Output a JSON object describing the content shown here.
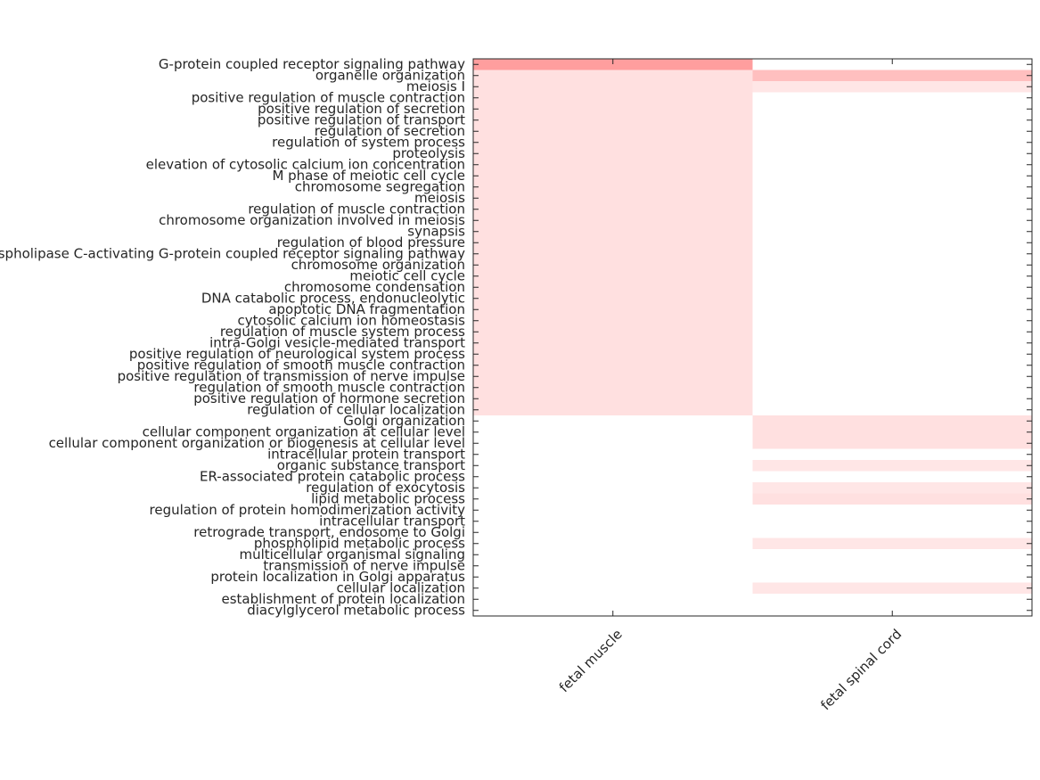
{
  "chart_data": {
    "type": "heatmap",
    "columns": [
      "fetal muscle",
      "fetal spinal cord"
    ],
    "rows": [
      "G-protein coupled receptor signaling pathway",
      "organelle organization",
      "meiosis I",
      "positive regulation of muscle contraction",
      "positive regulation of secretion",
      "positive regulation of transport",
      "regulation of secretion",
      "regulation of system process",
      "proteolysis",
      "elevation of cytosolic calcium ion concentration",
      "M phase of meiotic cell cycle",
      "chromosome segregation",
      "meiosis",
      "regulation of muscle contraction",
      "chromosome organization involved in meiosis",
      "synapsis",
      "regulation of blood pressure",
      "phospholipase C-activating G-protein coupled receptor signaling pathway",
      "chromosome organization",
      "meiotic cell cycle",
      "chromosome condensation",
      "DNA catabolic process, endonucleolytic",
      "apoptotic DNA fragmentation",
      "cytosolic calcium ion homeostasis",
      "regulation of muscle system process",
      "intra-Golgi vesicle-mediated transport",
      "positive regulation of neurological system process",
      "positive regulation of smooth muscle contraction",
      "positive regulation of transmission of nerve impulse",
      "regulation of smooth muscle contraction",
      "positive regulation of hormone secretion",
      "regulation of cellular localization",
      "Golgi organization",
      "cellular component organization at cellular level",
      "cellular component organization or biogenesis at cellular level",
      "intracellular protein transport",
      "organic substance transport",
      "ER-associated protein catabolic process",
      "regulation of exocytosis",
      "lipid metabolic process",
      "regulation of protein homodimerization activity",
      "intracellular transport",
      "retrograde transport, endosome to Golgi",
      "phospholipid metabolic process",
      "multicellular organismal signaling",
      "transmission of nerve impulse",
      "protein localization in Golgi apparatus",
      "cellular localization",
      "establishment of protein localization",
      "diacylglycerol metabolic process"
    ],
    "values": [
      [
        0.38,
        0.0
      ],
      [
        0.12,
        0.25
      ],
      [
        0.12,
        0.1
      ],
      [
        0.12,
        0.0
      ],
      [
        0.12,
        0.0
      ],
      [
        0.12,
        0.0
      ],
      [
        0.12,
        0.0
      ],
      [
        0.12,
        0.0
      ],
      [
        0.12,
        0.0
      ],
      [
        0.12,
        0.0
      ],
      [
        0.12,
        0.0
      ],
      [
        0.12,
        0.0
      ],
      [
        0.12,
        0.0
      ],
      [
        0.12,
        0.0
      ],
      [
        0.12,
        0.0
      ],
      [
        0.12,
        0.0
      ],
      [
        0.12,
        0.0
      ],
      [
        0.12,
        0.0
      ],
      [
        0.12,
        0.0
      ],
      [
        0.12,
        0.0
      ],
      [
        0.12,
        0.0
      ],
      [
        0.12,
        0.0
      ],
      [
        0.12,
        0.0
      ],
      [
        0.12,
        0.0
      ],
      [
        0.12,
        0.0
      ],
      [
        0.12,
        0.0
      ],
      [
        0.12,
        0.0
      ],
      [
        0.12,
        0.0
      ],
      [
        0.12,
        0.0
      ],
      [
        0.12,
        0.0
      ],
      [
        0.12,
        0.0
      ],
      [
        0.12,
        0.0
      ],
      [
        0.0,
        0.12
      ],
      [
        0.0,
        0.12
      ],
      [
        0.0,
        0.12
      ],
      [
        0.0,
        0.0
      ],
      [
        0.0,
        0.1
      ],
      [
        0.0,
        0.0
      ],
      [
        0.0,
        0.1
      ],
      [
        0.0,
        0.12
      ],
      [
        0.0,
        0.0
      ],
      [
        0.0,
        0.0
      ],
      [
        0.0,
        0.0
      ],
      [
        0.0,
        0.1
      ],
      [
        0.0,
        0.0
      ],
      [
        0.0,
        0.0
      ],
      [
        0.0,
        0.0
      ],
      [
        0.0,
        0.1
      ],
      [
        0.0,
        0.0
      ],
      [
        0.0,
        0.0
      ]
    ],
    "value_range": [
      0,
      1
    ],
    "color_high": "#ff0000",
    "color_low": "#ffffff",
    "xlabel": "",
    "ylabel": "",
    "title": "",
    "grid": false,
    "legend": "none"
  }
}
